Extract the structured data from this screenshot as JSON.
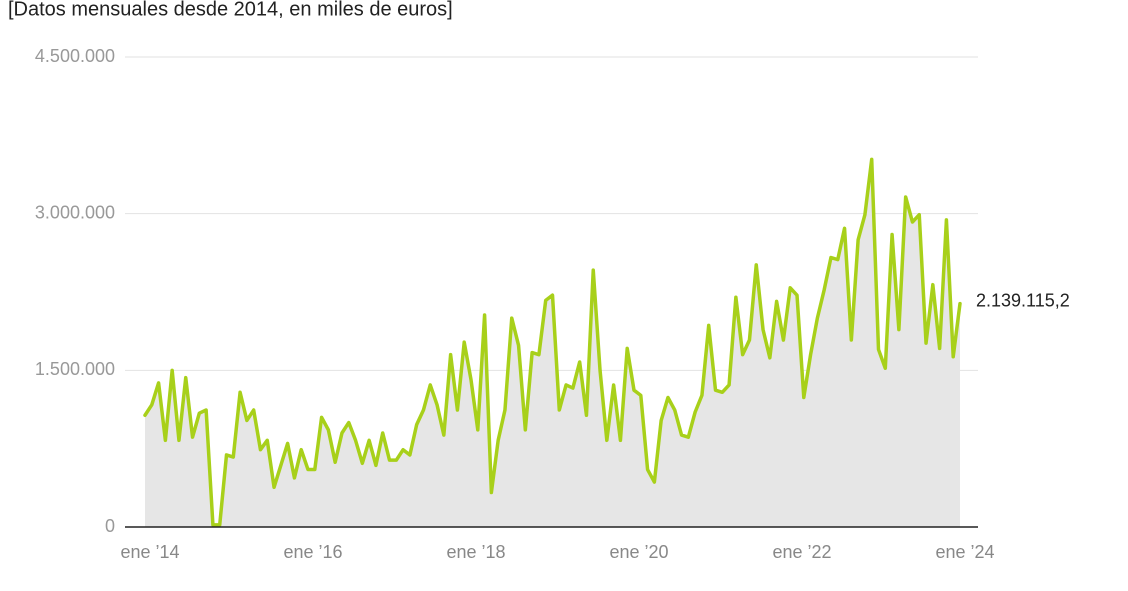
{
  "chart_data": {
    "type": "line",
    "subtitle": "[Datos mensuales desde 2014, en miles de euros]",
    "categories": [
      "ene ’14",
      null,
      null,
      null,
      null,
      null,
      null,
      null,
      null,
      null,
      null,
      null,
      null,
      null,
      null,
      null,
      null,
      null,
      null,
      null,
      null,
      null,
      null,
      null,
      "ene ’16",
      null,
      null,
      null,
      null,
      null,
      null,
      null,
      null,
      null,
      null,
      null,
      null,
      null,
      null,
      null,
      null,
      null,
      null,
      null,
      null,
      null,
      null,
      null,
      "ene ’18",
      null,
      null,
      null,
      null,
      null,
      null,
      null,
      null,
      null,
      null,
      null,
      null,
      null,
      null,
      null,
      null,
      null,
      null,
      null,
      null,
      null,
      null,
      null,
      "ene ’20",
      null,
      null,
      null,
      null,
      null,
      null,
      null,
      null,
      null,
      null,
      null,
      null,
      null,
      null,
      null,
      null,
      null,
      null,
      null,
      null,
      null,
      null,
      null,
      "ene ’22",
      null,
      null,
      null,
      null,
      null,
      null,
      null,
      null,
      null,
      null,
      null,
      null,
      null,
      null,
      null,
      null,
      null,
      null,
      null,
      null,
      null,
      null,
      null,
      "ene ’24"
    ],
    "series": [
      {
        "color": "#a8d01a",
        "fill": "#e6e6e6",
        "values": [
          1070000,
          1170000,
          1380000,
          830000,
          1500000,
          830000,
          1430000,
          860000,
          1090000,
          1120000,
          20000,
          20000,
          690000,
          670000,
          1290000,
          1020000,
          1120000,
          740000,
          830000,
          380000,
          590000,
          800000,
          470000,
          740000,
          550000,
          550000,
          1050000,
          930000,
          620000,
          900000,
          1000000,
          830000,
          610000,
          830000,
          590000,
          900000,
          640000,
          640000,
          740000,
          690000,
          980000,
          1120000,
          1360000,
          1170000,
          880000,
          1650000,
          1120000,
          1770000,
          1410000,
          930000,
          2030000,
          330000,
          830000,
          1120000,
          2000000,
          1740000,
          930000,
          1670000,
          1650000,
          2170000,
          2220000,
          1120000,
          1360000,
          1330000,
          1580000,
          1070000,
          2460000,
          1500000,
          830000,
          1360000,
          830000,
          1710000,
          1310000,
          1260000,
          550000,
          430000,
          1020000,
          1240000,
          1120000,
          880000,
          860000,
          1100000,
          1260000,
          1930000,
          1310000,
          1290000,
          1360000,
          2200000,
          1650000,
          1790000,
          2510000,
          1890000,
          1620000,
          2160000,
          1790000,
          2290000,
          2220000,
          1240000,
          1650000,
          2000000,
          2270000,
          2580000,
          2560000,
          2860000,
          1790000,
          2750000,
          2990000,
          3520000,
          1700000,
          1520000,
          2800000,
          1890000,
          3160000,
          2920000,
          2990000,
          1760000,
          2320000,
          1710000,
          2940000,
          1630000,
          2139115.2
        ],
        "value_labels": [
          null,
          null,
          null,
          null,
          null,
          null,
          null,
          null,
          null,
          null,
          null,
          null,
          null,
          null,
          null,
          null,
          null,
          null,
          null,
          null,
          null,
          null,
          null,
          null,
          null,
          null,
          null,
          null,
          null,
          null,
          null,
          null,
          null,
          null,
          null,
          null,
          null,
          null,
          null,
          null,
          null,
          null,
          null,
          null,
          null,
          null,
          null,
          null,
          null,
          null,
          null,
          null,
          null,
          null,
          null,
          null,
          null,
          null,
          null,
          null,
          null,
          null,
          null,
          null,
          null,
          null,
          null,
          null,
          null,
          null,
          null,
          null,
          null,
          null,
          null,
          null,
          null,
          null,
          null,
          null,
          null,
          null,
          null,
          null,
          null,
          null,
          null,
          null,
          null,
          null,
          null,
          null,
          null,
          null,
          null,
          null,
          null,
          null,
          null,
          null,
          null,
          null,
          null,
          null,
          null,
          null,
          null,
          null,
          null,
          null,
          null,
          null,
          null,
          null,
          null,
          null,
          null,
          null,
          null,
          null,
          "2.139.115,2"
        ]
      }
    ],
    "ylim": [
      0,
      4500000
    ],
    "yticks": [
      0,
      {
        "value": 1500000,
        "label": "1.500.000"
      },
      {
        "value": 3000000,
        "label": "3.000.000"
      },
      {
        "value": 4500000,
        "label": "4.500.000"
      }
    ],
    "grid": true
  }
}
